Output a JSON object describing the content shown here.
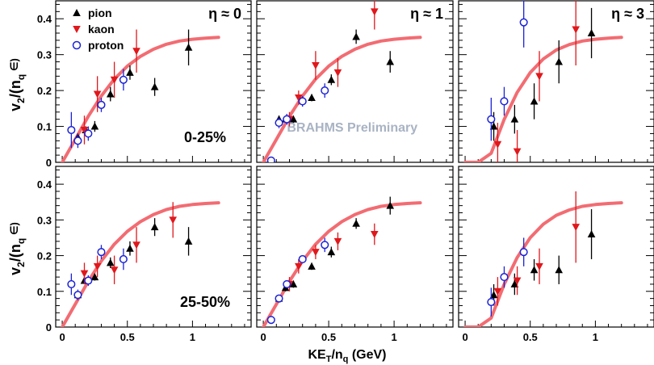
{
  "chart_data": [
    {
      "type": "scatter",
      "eta_label": "η ≈ 0",
      "centrality_label": "0-25%",
      "watermark": "",
      "series": [
        {
          "name": "pion",
          "marker": "triangle-up",
          "color": "#000000",
          "x": [
            0.12,
            0.18,
            0.25,
            0.37,
            0.52,
            0.71,
            0.97
          ],
          "y": [
            0.07,
            0.09,
            0.1,
            0.19,
            0.25,
            0.21,
            0.32
          ],
          "err": [
            0.01,
            0.01,
            0.015,
            0.02,
            0.02,
            0.025,
            0.05
          ]
        },
        {
          "name": "kaon",
          "marker": "triangle-down",
          "color": "#e0181c",
          "x": [
            0.17,
            0.27,
            0.4,
            0.57
          ],
          "y": [
            0.09,
            0.19,
            0.23,
            0.31
          ],
          "err": [
            0.04,
            0.05,
            0.05,
            0.06
          ]
        },
        {
          "name": "proton",
          "marker": "open-circle",
          "color": "#1b22d6",
          "x": [
            0.07,
            0.12,
            0.2,
            0.3,
            0.47
          ],
          "y": [
            0.09,
            0.06,
            0.08,
            0.16,
            0.23
          ],
          "err": [
            0.05,
            0.02,
            0.02,
            0.02,
            0.03
          ]
        }
      ]
    },
    {
      "type": "scatter",
      "eta_label": "η ≈ 1",
      "centrality_label": "",
      "watermark": "BRAHMS Preliminary",
      "series": [
        {
          "name": "pion",
          "marker": "triangle-up",
          "color": "#000000",
          "x": [
            0.12,
            0.17,
            0.23,
            0.37,
            0.52,
            0.71,
            0.97
          ],
          "y": [
            0.12,
            0.12,
            0.12,
            0.18,
            0.23,
            0.35,
            0.28
          ],
          "err": [
            0.01,
            0.01,
            0.01,
            0.01,
            0.015,
            0.02,
            0.03
          ]
        },
        {
          "name": "kaon",
          "marker": "triangle-down",
          "color": "#e0181c",
          "x": [
            0.2,
            0.27,
            0.4,
            0.57,
            0.85
          ],
          "y": [
            0.12,
            0.18,
            0.27,
            0.25,
            0.42
          ],
          "err": [
            0.02,
            0.02,
            0.04,
            0.04,
            0.05
          ]
        },
        {
          "name": "proton",
          "marker": "open-circle",
          "color": "#1b22d6",
          "x": [
            0.06,
            0.12,
            0.18,
            0.3,
            0.47
          ],
          "y": [
            0.005,
            0.11,
            0.12,
            0.17,
            0.2
          ],
          "err": [
            0.01,
            0.015,
            0.015,
            0.015,
            0.02
          ]
        }
      ]
    },
    {
      "type": "scatter",
      "eta_label": "η ≈ 3",
      "centrality_label": "",
      "watermark": "",
      "series": [
        {
          "name": "pion",
          "marker": "triangle-up",
          "color": "#000000",
          "x": [
            0.22,
            0.38,
            0.53,
            0.72,
            0.97
          ],
          "y": [
            0.1,
            0.12,
            0.17,
            0.28,
            0.36
          ],
          "err": [
            0.04,
            0.04,
            0.05,
            0.06,
            0.07
          ]
        },
        {
          "name": "kaon",
          "marker": "triangle-down",
          "color": "#e0181c",
          "x": [
            0.25,
            0.4,
            0.57,
            0.85
          ],
          "y": [
            0.05,
            0.03,
            0.24,
            0.37
          ],
          "err": [
            0.06,
            0.06,
            0.07,
            0.1
          ]
        },
        {
          "name": "proton",
          "marker": "open-circle",
          "color": "#1b22d6",
          "x": [
            0.2,
            0.3,
            0.45
          ],
          "y": [
            0.12,
            0.17,
            0.39
          ],
          "err": [
            0.06,
            0.04,
            0.07
          ]
        }
      ]
    },
    {
      "type": "scatter",
      "eta_label": "",
      "centrality_label": "25-50%",
      "watermark": "",
      "series": [
        {
          "name": "pion",
          "marker": "triangle-up",
          "color": "#000000",
          "x": [
            0.12,
            0.17,
            0.25,
            0.37,
            0.52,
            0.71,
            0.97
          ],
          "y": [
            0.09,
            0.13,
            0.14,
            0.18,
            0.22,
            0.28,
            0.24
          ],
          "err": [
            0.01,
            0.01,
            0.01,
            0.015,
            0.02,
            0.025,
            0.04
          ]
        },
        {
          "name": "kaon",
          "marker": "triangle-down",
          "color": "#e0181c",
          "x": [
            0.17,
            0.27,
            0.4,
            0.57,
            0.85
          ],
          "y": [
            0.15,
            0.17,
            0.16,
            0.23,
            0.3
          ],
          "err": [
            0.03,
            0.03,
            0.04,
            0.05,
            0.05
          ]
        },
        {
          "name": "proton",
          "marker": "open-circle",
          "color": "#1b22d6",
          "x": [
            0.07,
            0.12,
            0.2,
            0.3,
            0.47
          ],
          "y": [
            0.12,
            0.09,
            0.13,
            0.21,
            0.19
          ],
          "err": [
            0.03,
            0.015,
            0.015,
            0.02,
            0.03
          ]
        }
      ]
    },
    {
      "type": "scatter",
      "eta_label": "",
      "centrality_label": "",
      "watermark": "",
      "series": [
        {
          "name": "pion",
          "marker": "triangle-up",
          "color": "#000000",
          "x": [
            0.12,
            0.17,
            0.23,
            0.37,
            0.52,
            0.71,
            0.97
          ],
          "y": [
            0.08,
            0.11,
            0.12,
            0.17,
            0.21,
            0.29,
            0.34
          ],
          "err": [
            0.01,
            0.01,
            0.01,
            0.01,
            0.015,
            0.015,
            0.025
          ]
        },
        {
          "name": "kaon",
          "marker": "triangle-down",
          "color": "#e0181c",
          "x": [
            0.2,
            0.27,
            0.4,
            0.57,
            0.85
          ],
          "y": [
            0.12,
            0.17,
            0.21,
            0.24,
            0.26
          ],
          "err": [
            0.02,
            0.02,
            0.02,
            0.025,
            0.03
          ]
        },
        {
          "name": "proton",
          "marker": "open-circle",
          "color": "#1b22d6",
          "x": [
            0.06,
            0.12,
            0.18,
            0.3,
            0.47
          ],
          "y": [
            0.02,
            0.08,
            0.12,
            0.19,
            0.23
          ],
          "err": [
            0.01,
            0.01,
            0.01,
            0.01,
            0.02
          ]
        }
      ]
    },
    {
      "type": "scatter",
      "eta_label": "",
      "centrality_label": "",
      "watermark": "",
      "series": [
        {
          "name": "pion",
          "marker": "triangle-up",
          "color": "#000000",
          "x": [
            0.22,
            0.38,
            0.53,
            0.72,
            0.97
          ],
          "y": [
            0.09,
            0.12,
            0.16,
            0.16,
            0.26
          ],
          "err": [
            0.03,
            0.03,
            0.03,
            0.04,
            0.07
          ]
        },
        {
          "name": "kaon",
          "marker": "triangle-down",
          "color": "#e0181c",
          "x": [
            0.25,
            0.4,
            0.57,
            0.85
          ],
          "y": [
            0.1,
            0.13,
            0.17,
            0.28
          ],
          "err": [
            0.04,
            0.04,
            0.05,
            0.1
          ]
        },
        {
          "name": "proton",
          "marker": "open-circle",
          "color": "#1b22d6",
          "x": [
            0.2,
            0.3,
            0.45
          ],
          "y": [
            0.07,
            0.14,
            0.21
          ],
          "err": [
            0.04,
            0.03,
            0.04
          ]
        }
      ]
    }
  ],
  "shared": {
    "xlim": [
      -0.05,
      1.45
    ],
    "ylim": [
      0,
      0.45
    ],
    "xticks": [
      0,
      0.5,
      1
    ],
    "xtick_labels": [
      "0",
      "0.5",
      "1"
    ],
    "yticks": [
      0,
      0.1,
      0.2,
      0.3,
      0.4
    ],
    "ytick_labels": [
      "0",
      "0.1",
      "0.2",
      "0.3",
      "0.4"
    ],
    "xlabel": "KE",
    "xlabel_sub": "T",
    "xlabel_rest": "/n",
    "xlabel_sub2": "q",
    "xlabel_tail": " (GeV)",
    "ylabel": "v",
    "ylabel_sub": "2",
    "ylabel_mid": "/(n",
    "ylabel_sub2": "q",
    "ylabel_tail": " ∈)",
    "legend": [
      "pion",
      "kaon",
      "proton"
    ],
    "legend_position": "top-left",
    "fit_curve_color": "#f26c72",
    "fit_curve": {
      "x": [
        0.0,
        0.1,
        0.2,
        0.3,
        0.4,
        0.5,
        0.6,
        0.7,
        0.8,
        0.9,
        1.0,
        1.1,
        1.2
      ],
      "y": [
        0.0,
        0.064,
        0.128,
        0.185,
        0.232,
        0.268,
        0.295,
        0.315,
        0.329,
        0.338,
        0.343,
        0.346,
        0.348
      ]
    },
    "fit_curve_eta3": {
      "x": [
        0.0,
        0.1,
        0.2,
        0.3,
        0.4,
        0.5,
        0.6,
        0.7,
        0.8,
        0.9,
        1.0,
        1.1,
        1.2
      ],
      "y": [
        0.0,
        0.0,
        0.025,
        0.12,
        0.195,
        0.25,
        0.288,
        0.313,
        0.328,
        0.338,
        0.343,
        0.346,
        0.348
      ]
    }
  }
}
